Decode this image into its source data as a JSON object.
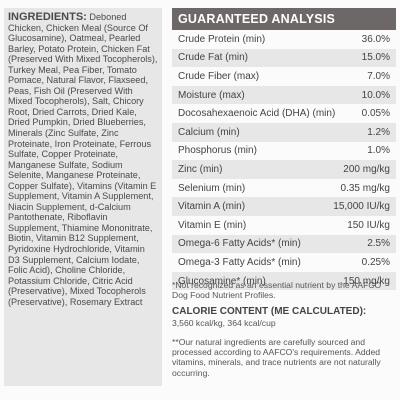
{
  "ingredients": {
    "heading": "INGREDIENTS:",
    "text": "Deboned Chicken, Chicken Meal (Source Of Glucosamine), Oatmeal, Pearled Barley, Potato Protein, Chicken Fat (Preserved With Mixed Tocopherols), Turkey Meal, Pea Fiber, Tomato Pomace, Natural Flavor, Flaxseed, Peas, Fish Oil (Preserved With Mixed Tocopherols), Salt, Chicory Root, Dried Carrots, Dried Kale, Dried Pumpkin, Dried Blueberries, Minerals (Zinc Sulfate, Zinc Proteinate, Iron Proteinate, Ferrous Sulfate, Copper Proteinate, Manganese Sulfate, Sodium Selenite, Manganese Proteinate, Copper Sulfate), Vitamins (Vitamin E Supplement, Vitamin A Supplement, Niacin Supplement, d-Calcium Pantothenate, Riboflavin Supplement, Thiamine Mononitrate, Biotin, Vitamin B12 Supplement, Pyridoxine Hydrochloride, Vitamin D3 Supplement, Calcium Iodate, Folic Acid), Choline Chloride, Potassium Chloride, Citric Acid (Preservative), Mixed Tocopherols (Preservative), Rosemary Extract"
  },
  "analysis": {
    "title": "GUARANTEED ANALYSIS",
    "rows": [
      {
        "label": "Crude Protein (min)",
        "value": "36.0%"
      },
      {
        "label": "Crude Fat (min)",
        "value": "15.0%"
      },
      {
        "label": "Crude Fiber (max)",
        "value": "7.0%"
      },
      {
        "label": "Moisture (max)",
        "value": "10.0%"
      },
      {
        "label": "Docosahexaenoic Acid (DHA) (min)",
        "value": "0.05%"
      },
      {
        "label": "Calcium (min)",
        "value": "1.2%"
      },
      {
        "label": "Phosphorus (min)",
        "value": "1.0%"
      },
      {
        "label": "Zinc (min)",
        "value": "200 mg/kg"
      },
      {
        "label": "Selenium (min)",
        "value": "0.35 mg/kg"
      },
      {
        "label": "Vitamin A (min)",
        "value": "15,000 IU/kg"
      },
      {
        "label": "Vitamin E (min)",
        "value": "150 IU/kg"
      },
      {
        "label": "Omega-6 Fatty Acids* (min)",
        "value": "2.5%"
      },
      {
        "label": "Omega-3 Fatty Acids* (min)",
        "value": "0.25%"
      },
      {
        "label": "Glucosamine* (min)",
        "value": "150 mg/kg"
      }
    ]
  },
  "notes": {
    "footnote1": "*Not recognized as an essential nutrient by the AAFCO Dog Food Nutrient Profiles.",
    "calorie_heading": "CALORIE CONTENT (ME CALCULATED):",
    "calorie_value": "3,560 kcal/kg, 364 kcal/cup",
    "footnote2": "**Our natural ingredients are carefully sourced and processed according to AAFCO's requirements. Added vitamins, minerals, and trace nutrients are not naturally occurring."
  }
}
